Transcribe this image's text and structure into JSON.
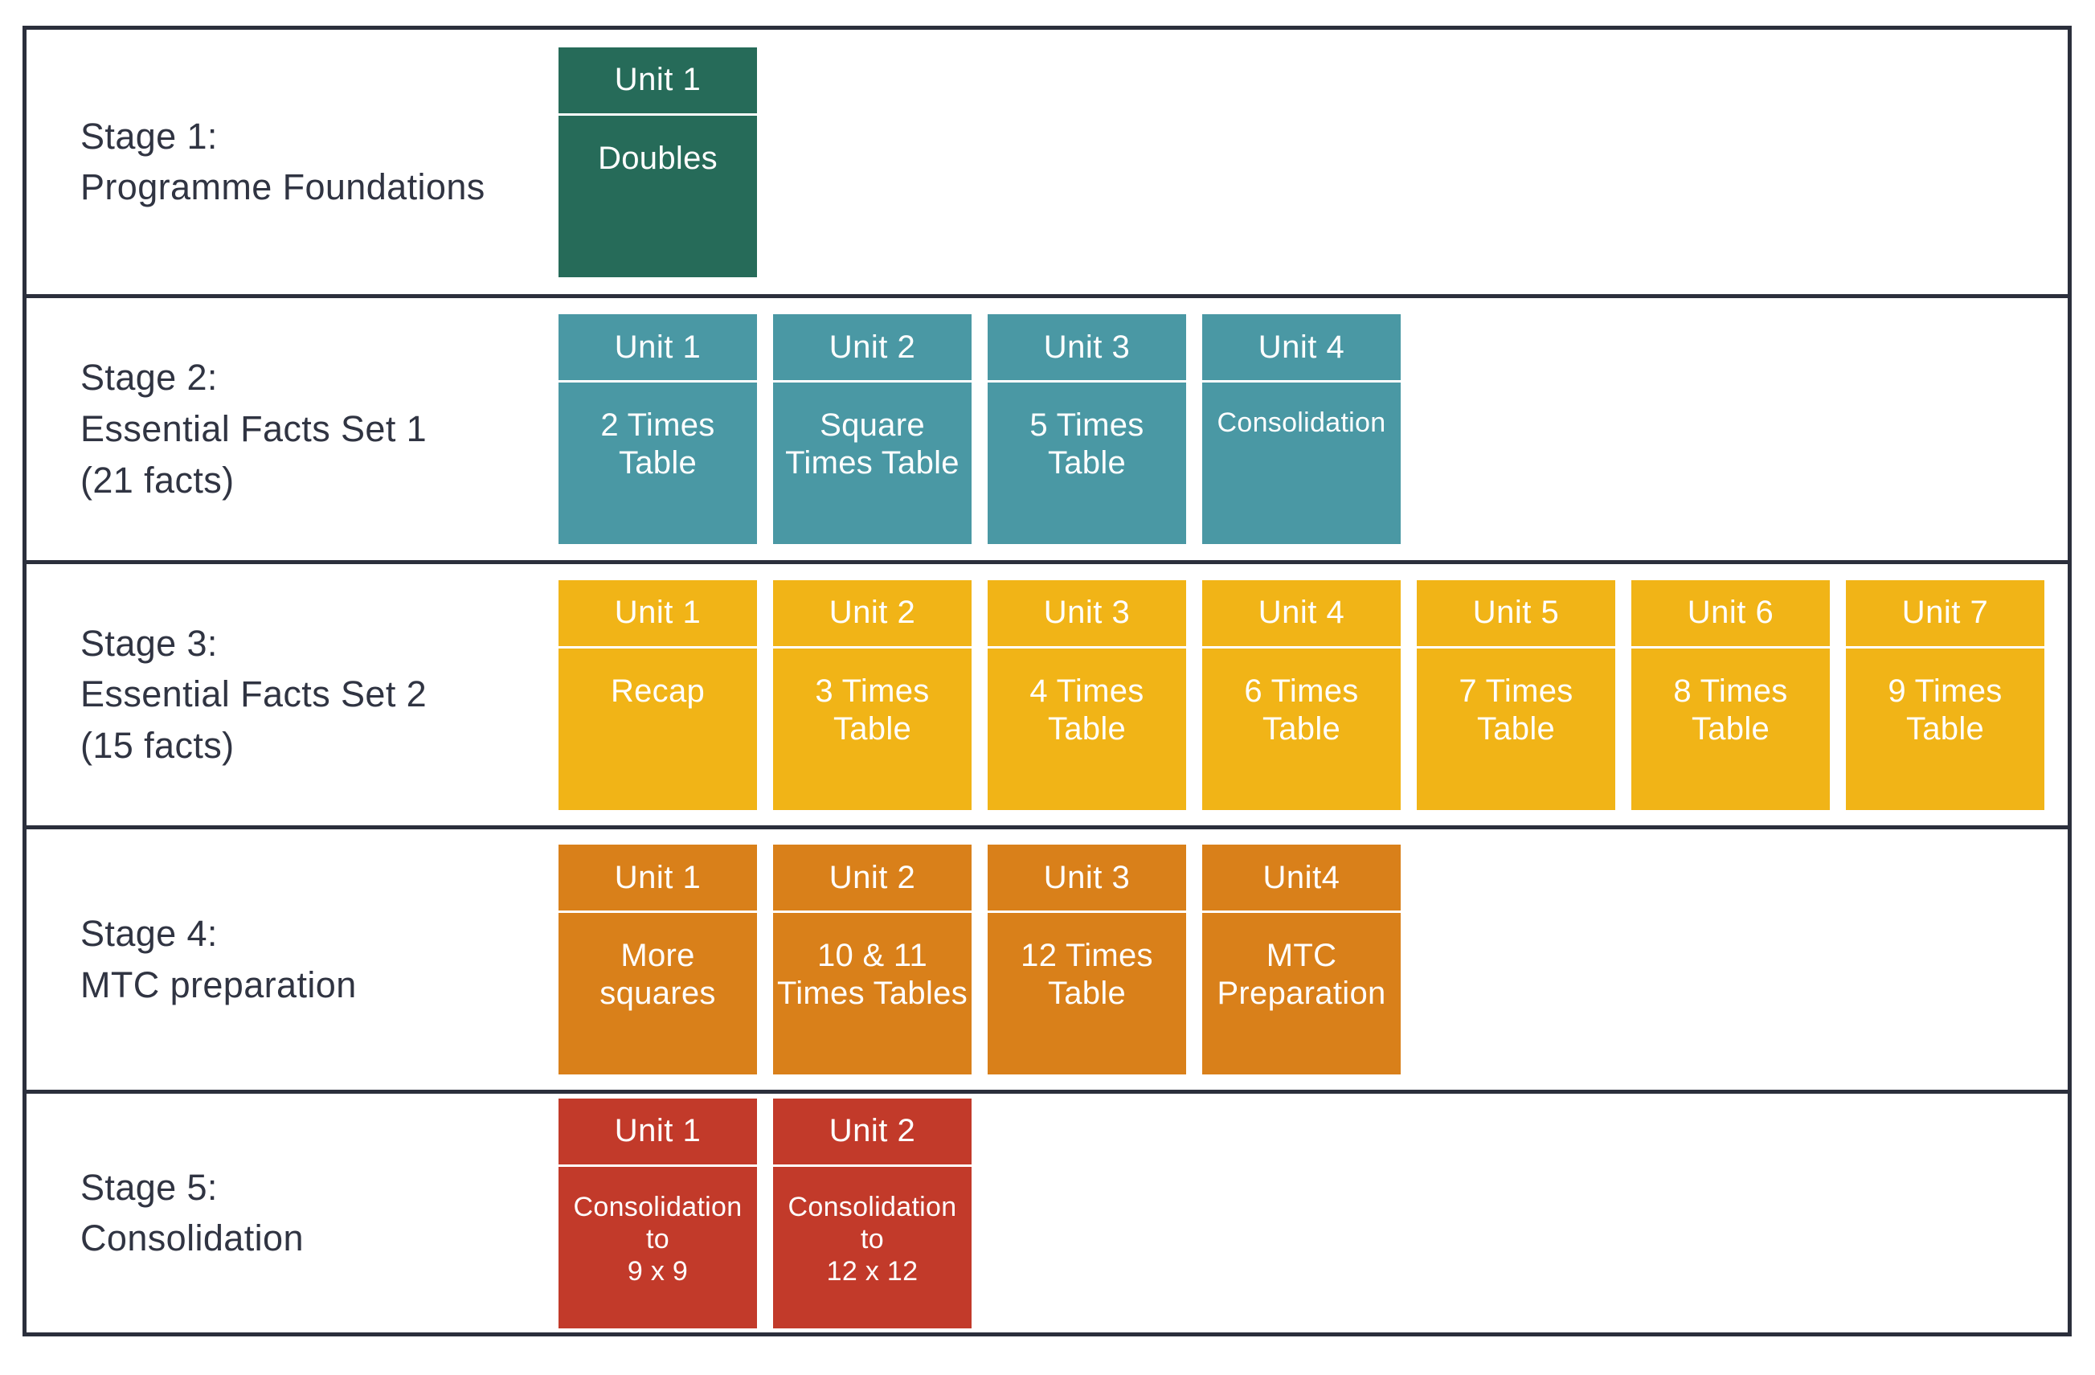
{
  "theme": {
    "background": "#ffffff",
    "border_color": "#2b2f3c",
    "label_text_color": "#303442",
    "card_text_color": "#ffffff"
  },
  "stages": [
    {
      "label_lines": [
        "Stage 1:",
        "Programme Foundations"
      ],
      "card_color": "#266b59",
      "units": [
        {
          "header": "Unit 1",
          "body": "Doubles"
        }
      ]
    },
    {
      "label_lines": [
        "Stage 2:",
        "Essential Facts Set 1",
        "(21 facts)"
      ],
      "card_color": "#4a98a4",
      "units": [
        {
          "header": "Unit 1",
          "body": "2 Times\nTable"
        },
        {
          "header": "Unit 2",
          "body": "Square\nTimes Table"
        },
        {
          "header": "Unit 3",
          "body": "5 Times\nTable"
        },
        {
          "header": "Unit 4",
          "body": "Consolidation"
        }
      ]
    },
    {
      "label_lines": [
        "Stage 3:",
        "Essential Facts Set 2",
        "(15 facts)"
      ],
      "card_color": "#f1b417",
      "units": [
        {
          "header": "Unit 1",
          "body": "Recap"
        },
        {
          "header": "Unit 2",
          "body": "3 Times\nTable"
        },
        {
          "header": "Unit 3",
          "body": "4 Times\nTable"
        },
        {
          "header": "Unit 4",
          "body": "6 Times\nTable"
        },
        {
          "header": "Unit 5",
          "body": "7 Times\nTable"
        },
        {
          "header": "Unit 6",
          "body": "8 Times\nTable"
        },
        {
          "header": "Unit 7",
          "body": "9 Times\nTable"
        }
      ]
    },
    {
      "label_lines": [
        "Stage 4:",
        "MTC preparation"
      ],
      "card_color": "#d9801a",
      "units": [
        {
          "header": "Unit 1",
          "body": "More\nsquares"
        },
        {
          "header": "Unit 2",
          "body": "10 & 11\nTimes Tables"
        },
        {
          "header": "Unit 3",
          "body": "12 Times\nTable"
        },
        {
          "header": "Unit4",
          "body": "MTC\nPreparation"
        }
      ]
    },
    {
      "label_lines": [
        "Stage 5:",
        "Consolidation"
      ],
      "card_color": "#c23a2a",
      "units": [
        {
          "header": "Unit 1",
          "body": "Consolidation\nto\n9 x 9"
        },
        {
          "header": "Unit 2",
          "body": "Consolidation\nto\n12 x 12"
        }
      ]
    }
  ]
}
